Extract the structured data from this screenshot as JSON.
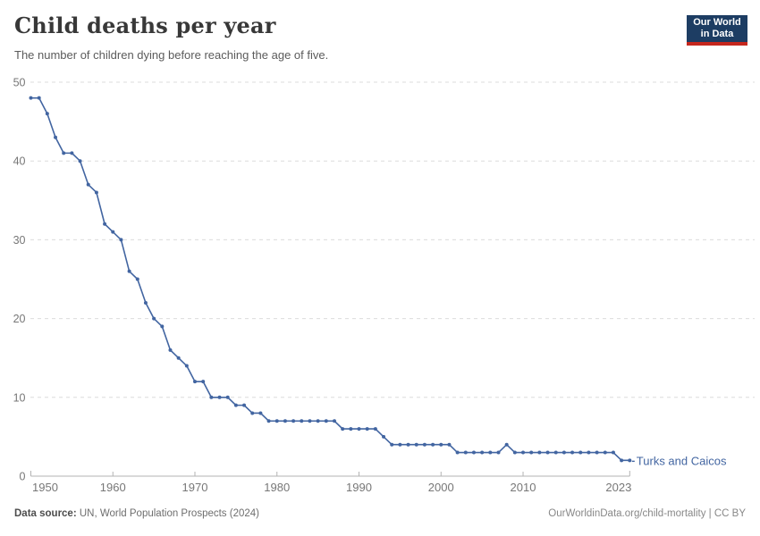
{
  "header": {
    "title": "Child deaths per year",
    "subtitle": "The number of children dying before reaching the age of five."
  },
  "logo": {
    "line1": "Our World",
    "line2": "in Data",
    "bg_color": "#1d3d63",
    "accent_color": "#c5271d"
  },
  "chart_data": {
    "type": "line",
    "title": "Child deaths per year",
    "subtitle": "The number of children dying before reaching the age of five.",
    "grid": "horizontal-dashed",
    "legend_position": "end-of-line-label",
    "ylim": [
      0,
      50
    ],
    "yticks": [
      0,
      10,
      20,
      30,
      40,
      50
    ],
    "xticks": [
      1950,
      1960,
      1970,
      1980,
      1990,
      2000,
      2010,
      2023
    ],
    "xlabel": "",
    "ylabel": "",
    "series": [
      {
        "name": "Turks and Caicos",
        "color": "#4265A1",
        "x": [
          1950,
          1951,
          1952,
          1953,
          1954,
          1955,
          1956,
          1957,
          1958,
          1959,
          1960,
          1961,
          1962,
          1963,
          1964,
          1965,
          1966,
          1967,
          1968,
          1969,
          1970,
          1971,
          1972,
          1973,
          1974,
          1975,
          1976,
          1977,
          1978,
          1979,
          1980,
          1981,
          1982,
          1983,
          1984,
          1985,
          1986,
          1987,
          1988,
          1989,
          1990,
          1991,
          1992,
          1993,
          1994,
          1995,
          1996,
          1997,
          1998,
          1999,
          2000,
          2001,
          2002,
          2003,
          2004,
          2005,
          2006,
          2007,
          2008,
          2009,
          2010,
          2011,
          2012,
          2013,
          2014,
          2015,
          2016,
          2017,
          2018,
          2019,
          2020,
          2021,
          2022,
          2023
        ],
        "values": [
          48,
          48,
          46,
          43,
          41,
          41,
          40,
          37,
          36,
          32,
          31,
          30,
          26,
          25,
          22,
          20,
          19,
          16,
          15,
          14,
          12,
          12,
          10,
          10,
          10,
          9,
          9,
          8,
          8,
          7,
          7,
          7,
          7,
          7,
          7,
          7,
          7,
          7,
          6,
          6,
          6,
          6,
          6,
          5,
          4,
          4,
          4,
          4,
          4,
          4,
          4,
          4,
          3,
          3,
          3,
          3,
          3,
          3,
          4,
          3,
          3,
          3,
          3,
          3,
          3,
          3,
          3,
          3,
          3,
          3,
          3,
          3,
          2,
          2
        ]
      }
    ]
  },
  "footer": {
    "source_label": "Data source:",
    "source_text": " UN, World Population Prospects (2024)",
    "credit": "OurWorldinData.org/child-mortality | CC BY"
  }
}
